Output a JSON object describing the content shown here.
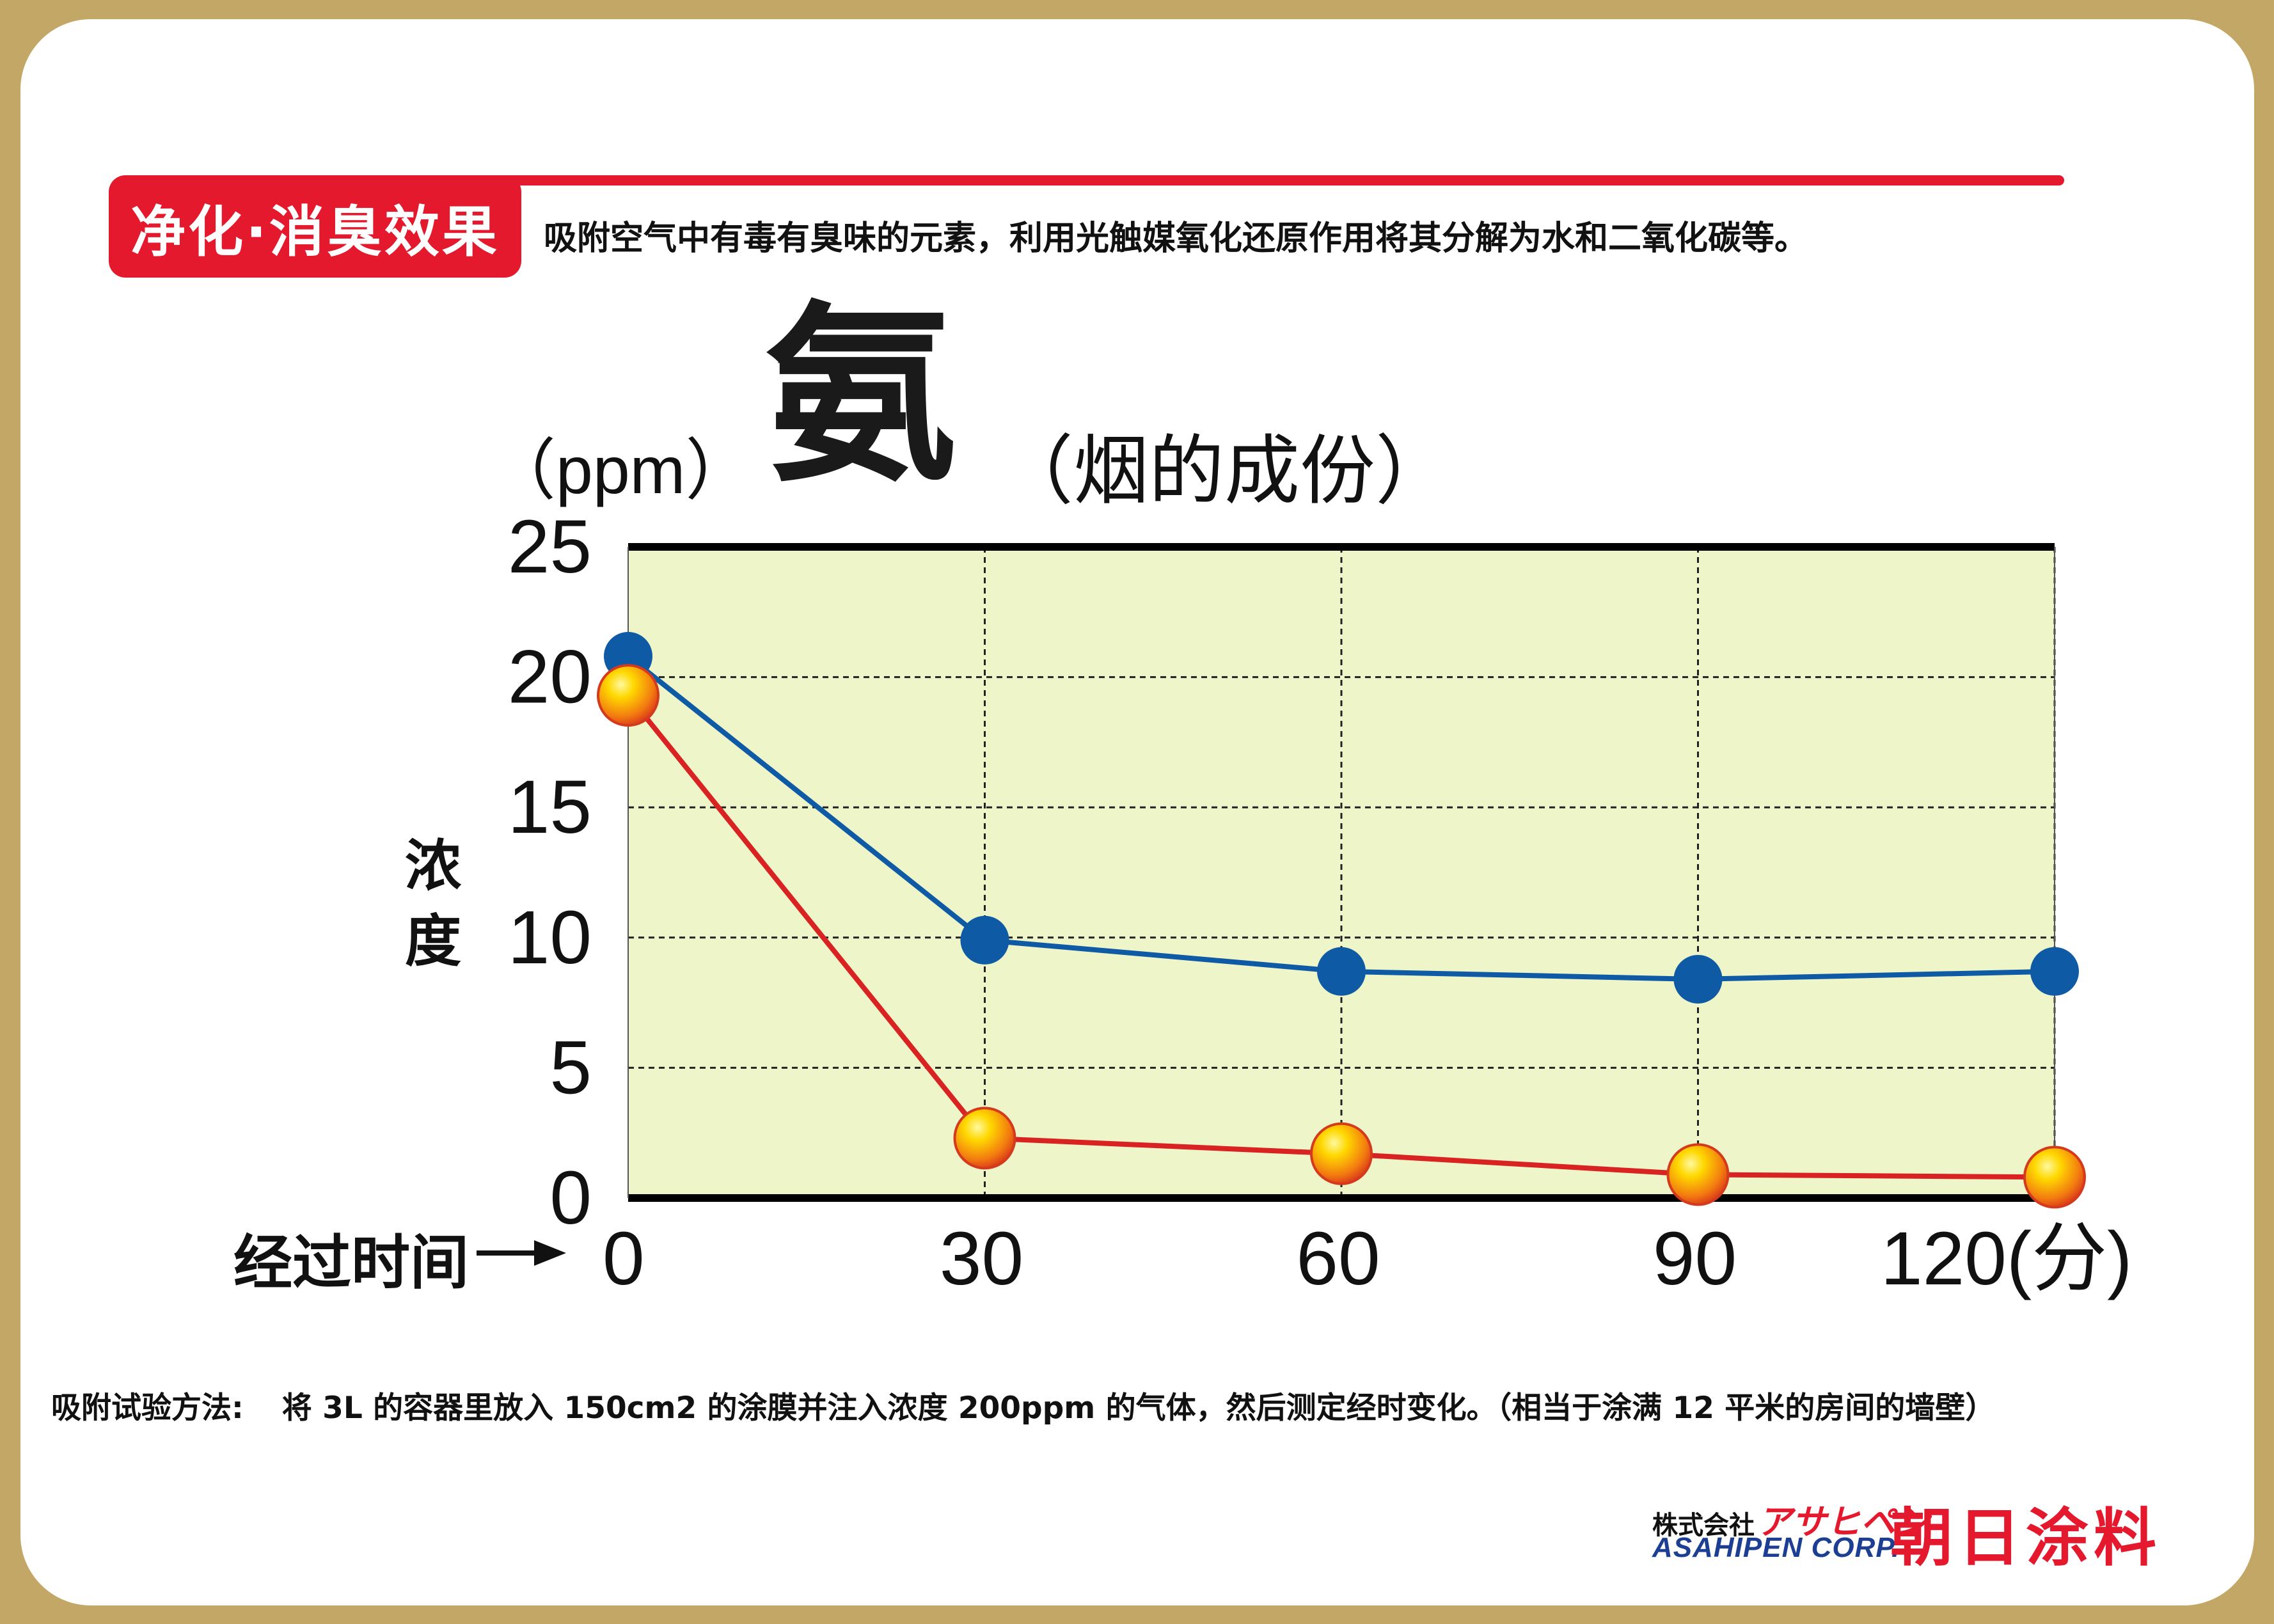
{
  "header": {
    "badge": "净化·消臭效果",
    "intro": "吸附空气中有毒有臭味的元素，利用光触媒氧化还原作用将其分解为水和二氧化碳等。"
  },
  "chart_data": {
    "type": "line",
    "title": "氨",
    "subtitle": "（烟的成份）",
    "unit_label": "（ppm）",
    "ylabel": "浓度",
    "xlabel": "经过时间",
    "x": [
      0,
      30,
      60,
      90,
      120
    ],
    "x_tick_labels": [
      "0",
      "30",
      "60",
      "90",
      "120(分)"
    ],
    "y_ticks": [
      0,
      5,
      10,
      15,
      20,
      25
    ],
    "xlim": [
      0,
      120
    ],
    "ylim": [
      0,
      25
    ],
    "grid": true,
    "plot_background": "#eef5c9",
    "series": [
      {
        "values": [
          20.8,
          9.9,
          8.7,
          8.4,
          8.7
        ],
        "color": "#0f5aa4",
        "marker": "blue-dot"
      },
      {
        "values": [
          19.3,
          2.3,
          1.7,
          0.9,
          0.8
        ],
        "color": "#d92323",
        "marker": "orange-sphere"
      }
    ]
  },
  "footer": {
    "method_label": "吸附试验方法:",
    "method_text": "将 3L 的容器里放入 150cm2 的涂膜并注入浓度 200ppm 的气体，然后测定经时变化。（相当于涂满 12 平米的房间的墙壁）",
    "corp_jp_prefix": "株式会社",
    "corp_jp_name": "アサヒペン",
    "corp_en": "ASAHIPEN CORP.",
    "corp_cn": "朝日涂料"
  }
}
